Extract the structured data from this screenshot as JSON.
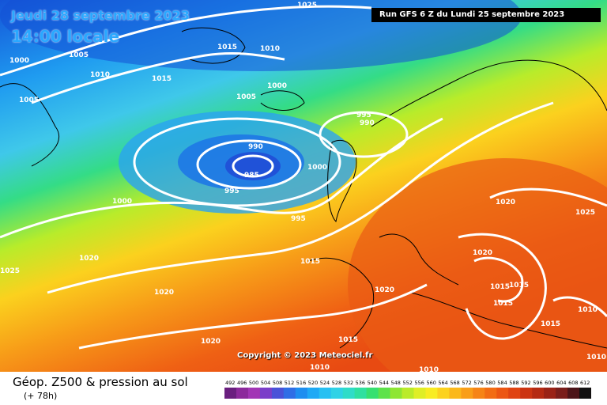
{
  "header": {
    "date": "Jeudi 28 septembre 2023",
    "time": "14:00 locale",
    "run": "Run GFS 6 Z du Lundi 25 septembre 2023"
  },
  "copyright": "Copyright © 2023 Meteociel.fr",
  "footer": {
    "title": "Géop. Z500 & pression au sol",
    "forecast_hour": "(+ 78h)"
  },
  "isobar_labels": [
    "1025",
    "1015",
    "1005",
    "1010",
    "1000",
    "1005",
    "1015",
    "1010",
    "1000",
    "1005",
    "995",
    "990",
    "990",
    "985",
    "995",
    "1000",
    "1000",
    "995",
    "1015",
    "1020",
    "1020",
    "1020",
    "1025",
    "1020",
    "1010",
    "1015",
    "1015",
    "1015",
    "1015",
    "1010",
    "1010",
    "1020",
    "1015",
    "1010",
    "1025",
    "1020"
  ],
  "legend": {
    "values": [
      "492",
      "496",
      "500",
      "504",
      "508",
      "512",
      "516",
      "520",
      "524",
      "528",
      "532",
      "536",
      "540",
      "544",
      "548",
      "552",
      "556",
      "560",
      "564",
      "568",
      "572",
      "576",
      "580",
      "584",
      "588",
      "592",
      "596",
      "600",
      "604",
      "608",
      "612"
    ],
    "colors": [
      "#6a1f7f",
      "#8c2a9c",
      "#a236b5",
      "#7b3ec9",
      "#4a52d8",
      "#2f6ee6",
      "#1e8ef0",
      "#1fa9f5",
      "#26c0f2",
      "#2fd2e6",
      "#2fdcc8",
      "#2ee0a0",
      "#36e070",
      "#5ee24a",
      "#8ee633",
      "#baeb2a",
      "#dfee26",
      "#f8ec22",
      "#fcd21e",
      "#fbb81b",
      "#f99e18",
      "#f68416",
      "#f26c14",
      "#ec5613",
      "#e04312",
      "#cc3412",
      "#b52a13",
      "#9a2216",
      "#7a1d1a",
      "#4c1418",
      "#121010"
    ]
  }
}
